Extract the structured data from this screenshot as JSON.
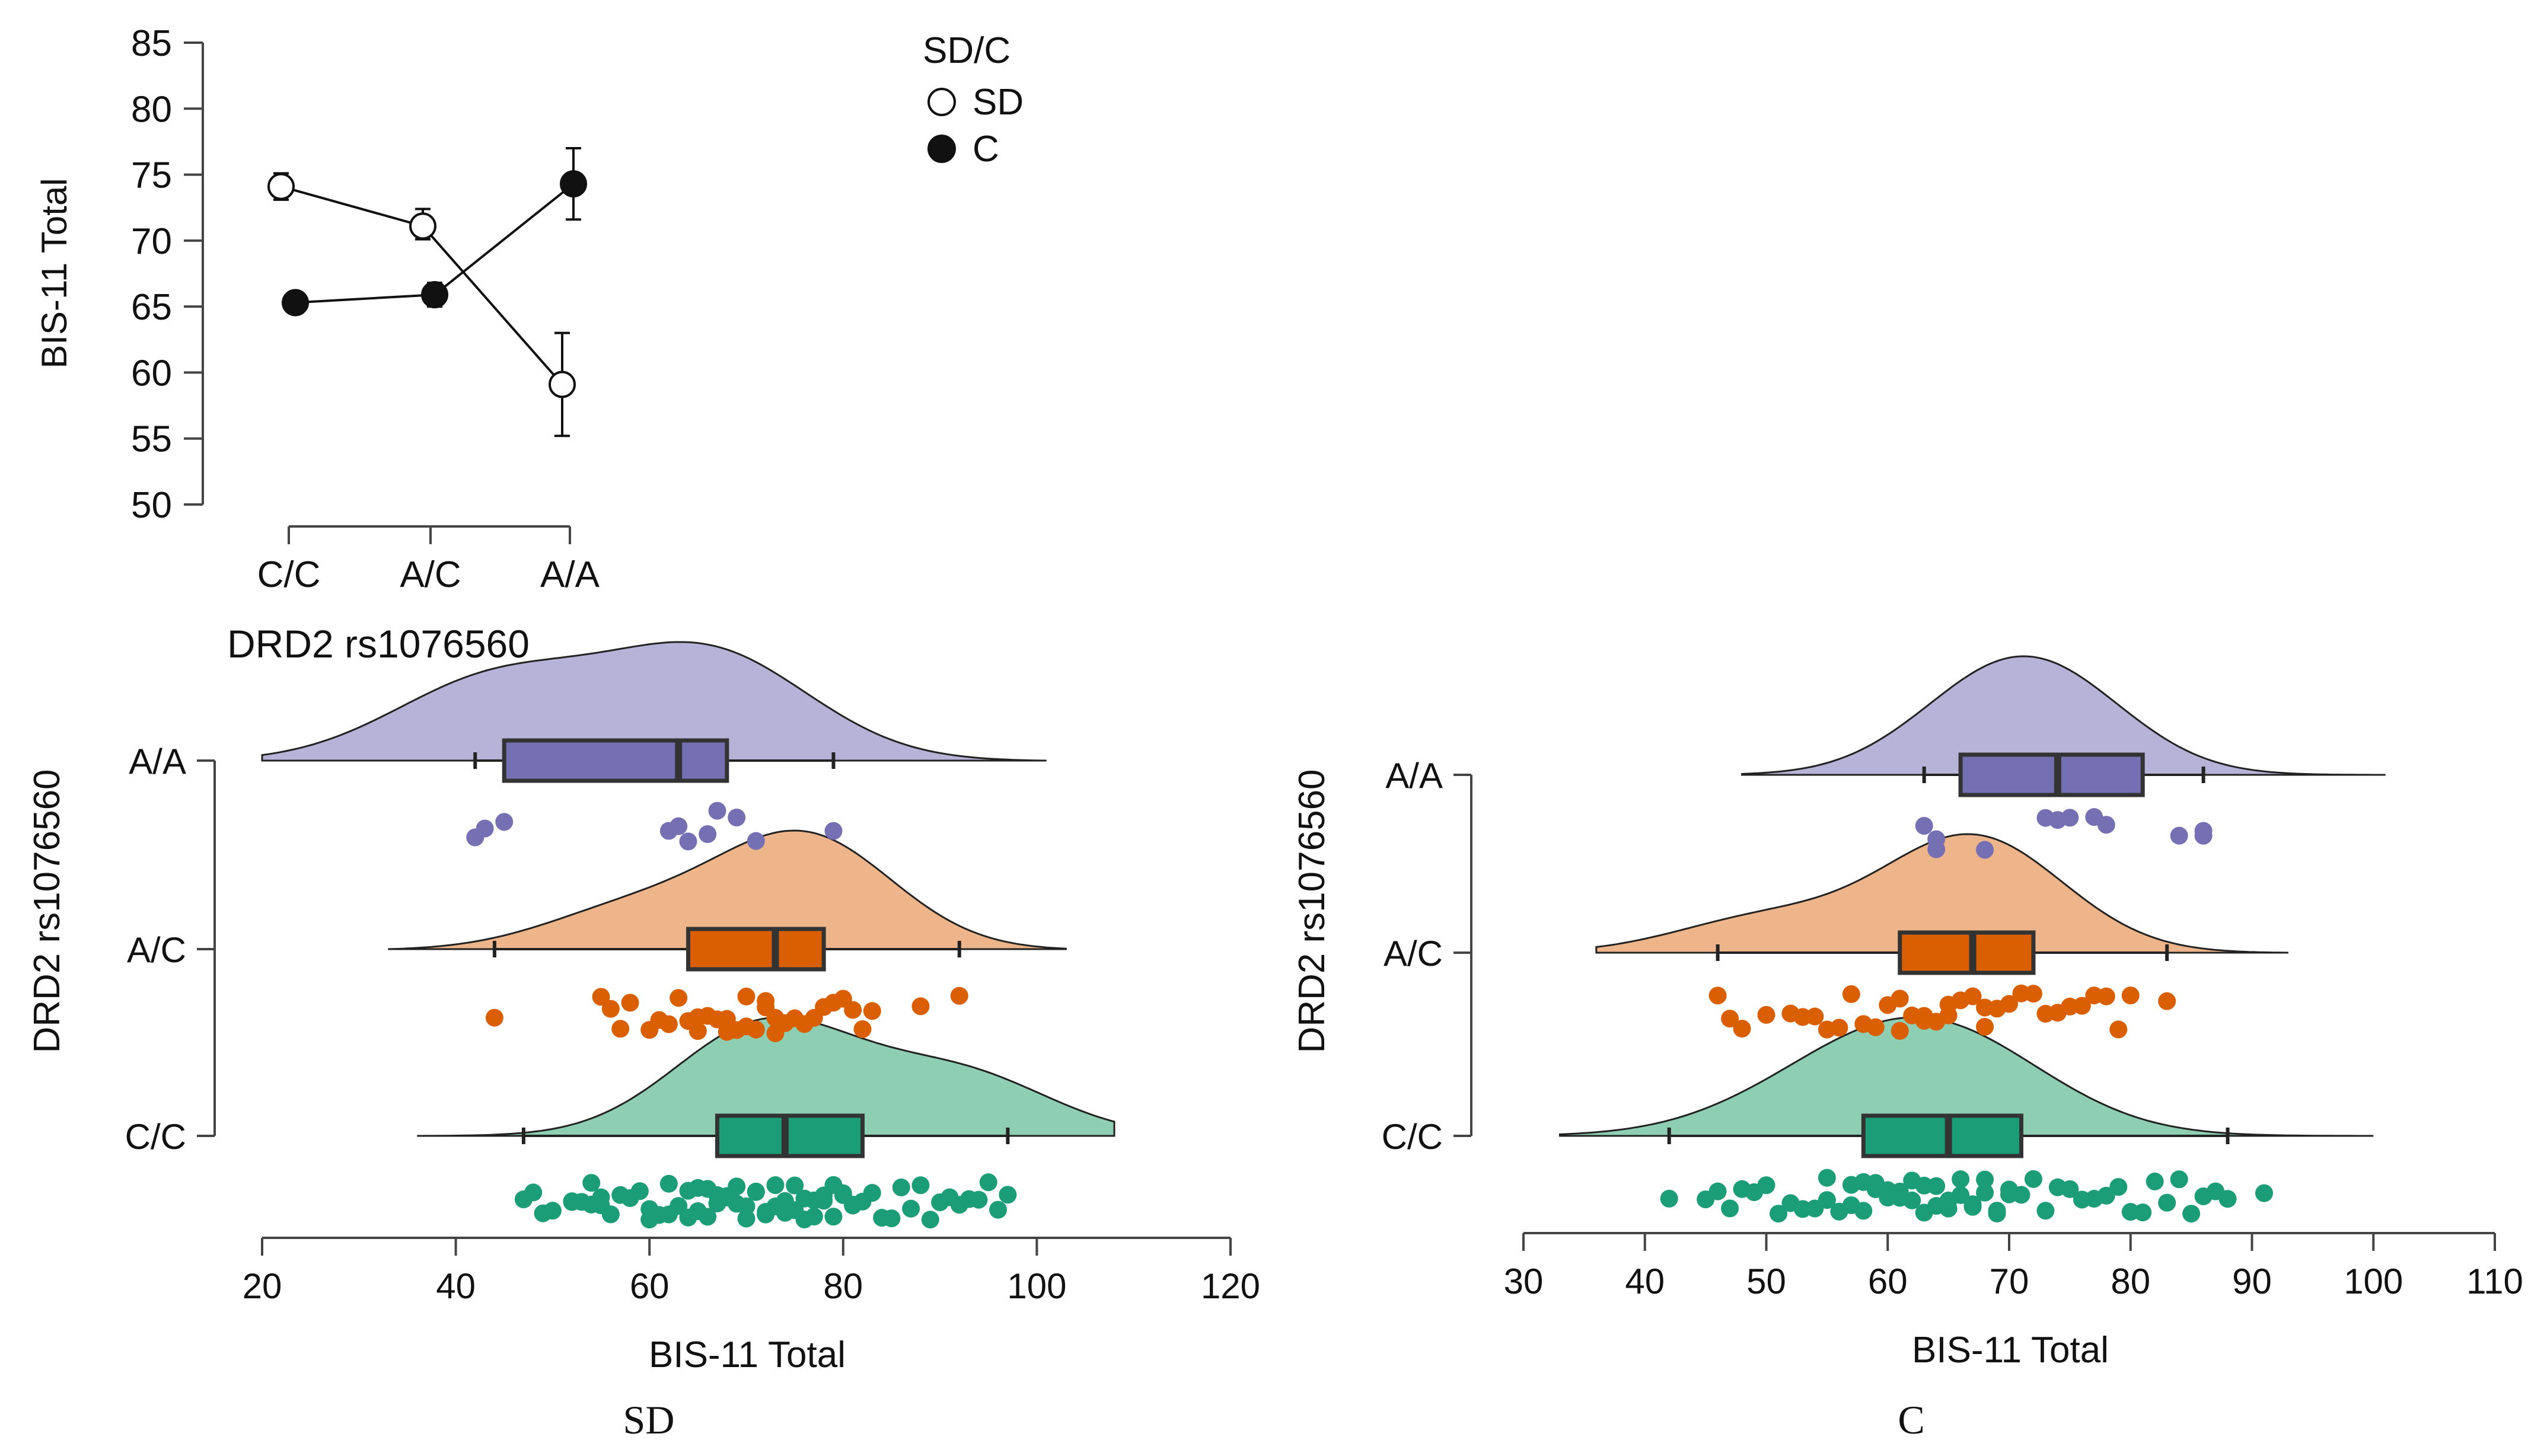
{
  "chart_data": [
    {
      "type": "line",
      "ylabel": "BIS-11 Total",
      "xlabel": "DRD2  rs1076560",
      "categories": [
        "C/C",
        "A/C",
        "A/A"
      ],
      "ylim": [
        50,
        85
      ],
      "yticks": [
        50,
        55,
        60,
        65,
        70,
        75,
        80,
        85
      ],
      "legend": {
        "title": "SD/C",
        "placement": "top-right"
      },
      "series": [
        {
          "name": "SD",
          "marker": "open-circle",
          "values": [
            74.1,
            71.1,
            59.1
          ],
          "err_low": [
            73.1,
            70.1,
            55.2
          ],
          "err_high": [
            75.1,
            72.4,
            63.0
          ]
        },
        {
          "name": "C",
          "marker": "filled-circle",
          "values": [
            65.3,
            65.9,
            74.3
          ],
          "err_low": [
            65.3,
            65.0,
            71.6
          ],
          "err_high": [
            65.3,
            66.8,
            77.0
          ]
        }
      ],
      "grid": false
    },
    {
      "type": "raincloud",
      "panel_label": "SD",
      "xlabel": "BIS-11 Total",
      "ylabel": "DRD2  rs1076560",
      "xlim": [
        20,
        120
      ],
      "xticks": [
        20,
        40,
        60,
        80,
        100,
        120
      ],
      "grid": false,
      "groups": [
        {
          "name": "C/C",
          "color": "#1b9e77",
          "cloud_color": "#8ecfb4",
          "range": [
            36,
            108
          ],
          "whiskers": [
            47,
            97
          ],
          "box": [
            67,
            82
          ],
          "median": 74,
          "peaks": [
            [
              72,
              1.0
            ],
            [
              92,
              0.55
            ]
          ],
          "points": [
            47,
            48,
            49,
            50,
            52,
            52,
            53,
            54,
            54,
            55,
            55,
            56,
            57,
            58,
            59,
            60,
            60,
            61,
            62,
            62,
            63,
            64,
            64,
            65,
            65,
            66,
            66,
            67,
            67,
            68,
            68,
            69,
            69,
            70,
            70,
            71,
            71,
            72,
            72,
            73,
            73,
            74,
            74,
            75,
            75,
            76,
            76,
            77,
            77,
            78,
            78,
            79,
            79,
            80,
            80,
            81,
            81,
            82,
            83,
            84,
            85,
            86,
            87,
            88,
            89,
            90,
            91,
            92,
            93,
            94,
            95,
            96,
            97
          ]
        },
        {
          "name": "A/C",
          "color": "#d95f02",
          "cloud_color": "#efb58a",
          "range": [
            33,
            103
          ],
          "whiskers": [
            44,
            92
          ],
          "box": [
            64,
            78
          ],
          "median": 73,
          "peaks": [
            [
              76,
              1.0
            ],
            [
              58,
              0.35
            ]
          ],
          "points": [
            44,
            55,
            56,
            57,
            58,
            60,
            61,
            62,
            63,
            64,
            65,
            65,
            66,
            67,
            68,
            68,
            69,
            70,
            70,
            71,
            72,
            72,
            73,
            73,
            74,
            75,
            76,
            77,
            78,
            79,
            80,
            81,
            82,
            83,
            88,
            92
          ]
        },
        {
          "name": "A/A",
          "color": "#7570b3",
          "cloud_color": "#b7b3d8",
          "range": [
            20,
            101
          ],
          "whiskers": [
            42,
            79
          ],
          "box": [
            45,
            68
          ],
          "median": 63,
          "peaks": [
            [
              44,
              0.75
            ],
            [
              66,
              1.0
            ]
          ],
          "points": [
            42,
            43,
            45,
            62,
            63,
            64,
            66,
            67,
            69,
            71,
            79
          ]
        }
      ]
    },
    {
      "type": "raincloud",
      "panel_label": "C",
      "xlabel": "BIS-11 Total",
      "ylabel": "DRD2  rs1076560",
      "xlim": [
        30,
        110
      ],
      "xticks": [
        30,
        40,
        50,
        60,
        70,
        80,
        90,
        100,
        110
      ],
      "grid": false,
      "groups": [
        {
          "name": "C/C",
          "color": "#1b9e77",
          "cloud_color": "#8ecfb4",
          "range": [
            33,
            100
          ],
          "whiskers": [
            42,
            88
          ],
          "box": [
            58,
            71
          ],
          "median": 65,
          "peaks": [
            [
              65,
              1.0
            ],
            [
              56,
              0.55
            ]
          ],
          "points": [
            42,
            45,
            46,
            47,
            48,
            49,
            50,
            51,
            52,
            53,
            54,
            55,
            55,
            56,
            57,
            57,
            58,
            58,
            59,
            59,
            60,
            60,
            61,
            61,
            62,
            62,
            63,
            63,
            64,
            64,
            65,
            65,
            66,
            66,
            67,
            67,
            68,
            68,
            69,
            69,
            70,
            70,
            71,
            72,
            73,
            74,
            75,
            76,
            77,
            78,
            79,
            80,
            81,
            82,
            83,
            84,
            85,
            86,
            87,
            88,
            91
          ]
        },
        {
          "name": "A/C",
          "color": "#d95f02",
          "cloud_color": "#efb58a",
          "range": [
            36,
            93
          ],
          "whiskers": [
            46,
            83
          ],
          "box": [
            61,
            72
          ],
          "median": 67,
          "peaks": [
            [
              67,
              1.0
            ],
            [
              50,
              0.3
            ]
          ],
          "points": [
            46,
            47,
            48,
            50,
            52,
            53,
            54,
            55,
            56,
            57,
            58,
            59,
            60,
            61,
            61,
            62,
            63,
            63,
            64,
            65,
            65,
            66,
            67,
            68,
            68,
            69,
            70,
            71,
            72,
            73,
            74,
            75,
            76,
            77,
            78,
            79,
            80,
            83
          ]
        },
        {
          "name": "A/A",
          "color": "#7570b3",
          "cloud_color": "#b7b3d8",
          "range": [
            48,
            101
          ],
          "whiskers": [
            63,
            86
          ],
          "box": [
            66,
            81
          ],
          "median": 74,
          "peaks": [
            [
              74,
              1.0
            ],
            [
              68,
              0.9
            ]
          ],
          "points": [
            63,
            64,
            64,
            68,
            73,
            74,
            75,
            77,
            78,
            84,
            86,
            86
          ]
        }
      ]
    }
  ]
}
